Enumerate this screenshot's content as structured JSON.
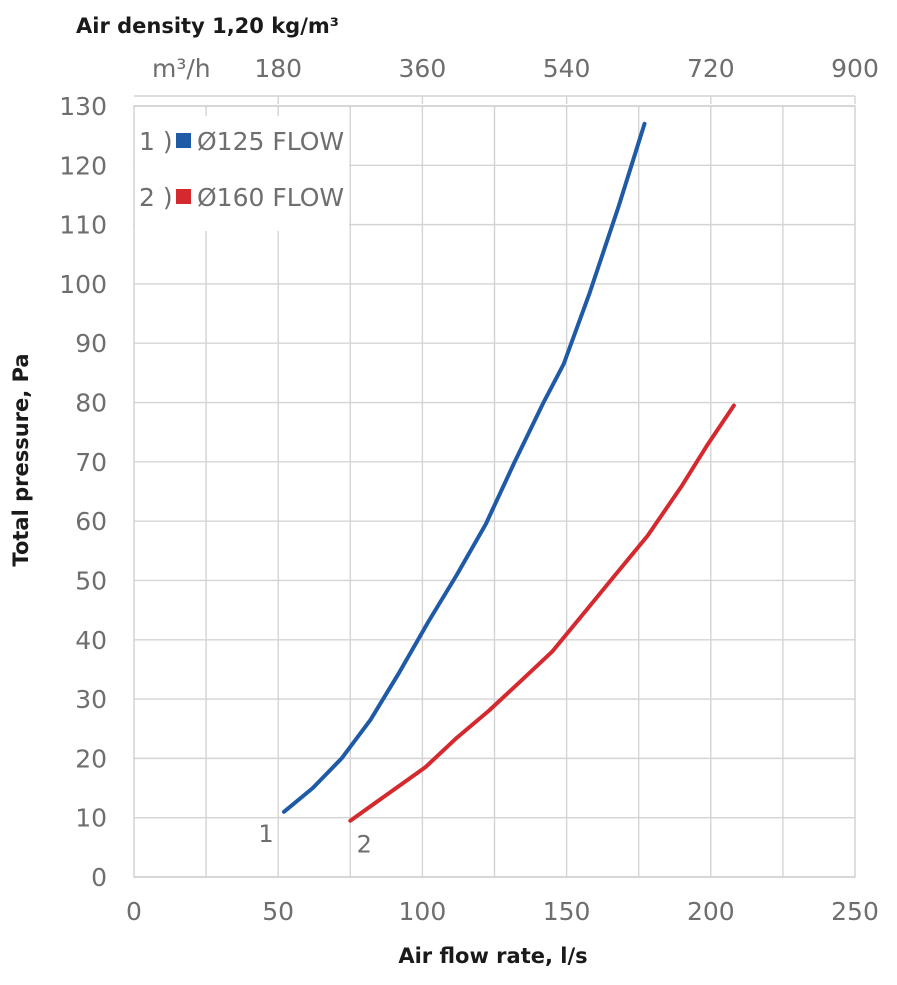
{
  "chart_data": {
    "type": "line",
    "title": "Air density 1,20 kg/m³",
    "xlabel": "Air flow rate, l/s",
    "ylabel": "Total pressure, Pa",
    "xlim": [
      0,
      250
    ],
    "ylim": [
      0,
      130
    ],
    "x_ticks": [
      "0",
      "50",
      "100",
      "150",
      "200",
      "250"
    ],
    "y_ticks": [
      "0",
      "10",
      "20",
      "30",
      "40",
      "50",
      "60",
      "70",
      "80",
      "90",
      "100",
      "110",
      "120",
      "130"
    ],
    "secondary_x_axis": {
      "unit_label": "m³/h",
      "ticks": [
        "180",
        "360",
        "540",
        "720",
        "900"
      ],
      "values_m3h": [
        180,
        360,
        540,
        720,
        900
      ]
    },
    "grid": true,
    "legend_position": "top-left",
    "series": [
      {
        "name": "Ø125 FLOW",
        "legend_index": "1 )",
        "curve_label": "1",
        "color": "#1f5aa6",
        "x": [
          52,
          62,
          72,
          82,
          92,
          102,
          112,
          122,
          132,
          142,
          149,
          158,
          168,
          177
        ],
        "y": [
          11,
          15,
          20,
          26.5,
          34.5,
          43,
          51,
          59.5,
          70,
          80,
          86.5,
          98.5,
          113,
          127
        ]
      },
      {
        "name": "Ø160 FLOW",
        "legend_index": "2 )",
        "curve_label": "2",
        "color": "#d42a2f",
        "x": [
          75,
          88,
          101,
          112,
          123,
          134,
          145,
          156,
          167,
          178,
          190,
          199,
          208
        ],
        "y": [
          9.5,
          14,
          18.5,
          23.5,
          28,
          33,
          38,
          44.5,
          51,
          57.5,
          66,
          73,
          79.5
        ]
      }
    ]
  }
}
